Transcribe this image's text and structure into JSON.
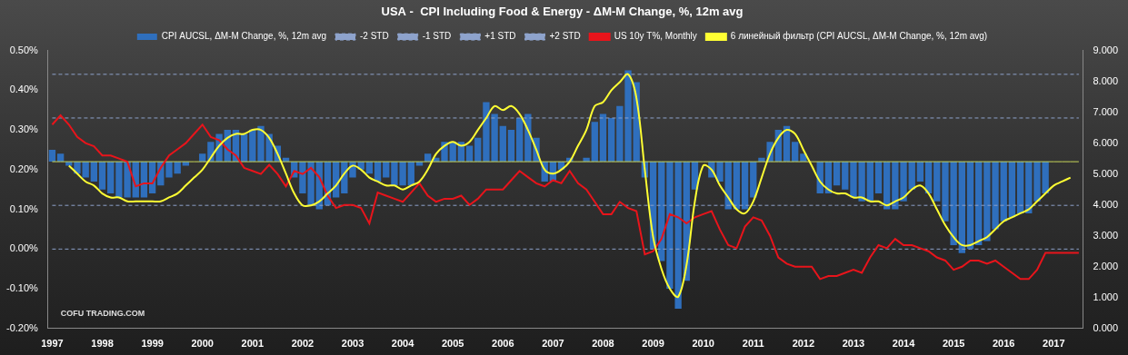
{
  "chart_data": {
    "type": "bar",
    "title": "USA -  CPI Including Food & Energy - ΔM-M Change, %, 12m avg",
    "annotation": "COFU TRADING.COM",
    "categories": [
      "1997",
      null,
      null,
      null,
      null,
      null,
      "1998",
      null,
      null,
      null,
      null,
      null,
      "1999",
      null,
      null,
      null,
      null,
      null,
      "2000",
      null,
      null,
      null,
      null,
      null,
      "2001",
      null,
      null,
      null,
      null,
      null,
      "2002",
      null,
      null,
      null,
      null,
      null,
      "2003",
      null,
      null,
      null,
      null,
      null,
      "2004",
      null,
      null,
      null,
      null,
      null,
      "2005",
      null,
      null,
      null,
      null,
      null,
      "2006",
      null,
      null,
      null,
      null,
      null,
      "2007",
      null,
      null,
      null,
      null,
      null,
      "2008",
      null,
      null,
      null,
      null,
      null,
      "2009",
      null,
      null,
      null,
      null,
      null,
      "2010",
      null,
      null,
      null,
      null,
      null,
      "2011",
      null,
      null,
      null,
      null,
      null,
      "2012",
      null,
      null,
      null,
      null,
      null,
      "2013",
      null,
      null,
      null,
      null,
      null,
      "2014",
      null,
      null,
      null,
      null,
      null,
      "2015",
      null,
      null,
      null,
      null,
      null,
      "2016",
      null,
      null,
      null,
      null,
      null,
      "2017",
      null,
      null,
      null
    ],
    "series": [
      {
        "name": "CPI AUCSL, ΔM-M Change, %, 12m avg",
        "type": "bar",
        "color": "#2f6fbd",
        "base": 0.22,
        "values": [
          0.25,
          0.24,
          0.21,
          0.19,
          0.18,
          0.17,
          0.15,
          0.14,
          0.13,
          0.13,
          0.13,
          0.13,
          0.14,
          0.16,
          0.18,
          0.19,
          0.21,
          0.22,
          0.24,
          0.27,
          0.29,
          0.3,
          0.3,
          0.29,
          0.3,
          0.31,
          0.29,
          0.26,
          0.23,
          0.18,
          0.14,
          0.11,
          0.1,
          0.11,
          0.13,
          0.14,
          0.18,
          0.2,
          0.19,
          0.17,
          0.18,
          0.16,
          0.16,
          0.16,
          0.21,
          0.24,
          0.23,
          0.27,
          0.27,
          0.27,
          0.26,
          0.28,
          0.37,
          0.34,
          0.31,
          0.3,
          0.33,
          0.34,
          0.28,
          0.17,
          0.17,
          0.2,
          0.23,
          0.22,
          0.23,
          0.32,
          0.34,
          0.33,
          0.36,
          0.45,
          0.42,
          0.18,
          0.0,
          -0.03,
          -0.1,
          -0.15,
          -0.08,
          0.15,
          0.22,
          0.18,
          0.17,
          0.1,
          0.1,
          0.1,
          0.13,
          0.23,
          0.27,
          0.3,
          0.31,
          0.27,
          0.24,
          0.22,
          0.14,
          0.14,
          0.16,
          0.15,
          0.13,
          0.12,
          0.12,
          0.14,
          0.1,
          0.1,
          0.12,
          0.15,
          0.17,
          0.14,
          0.12,
          0.07,
          0.01,
          -0.01,
          0.0,
          0.01,
          0.02,
          0.05,
          0.07,
          0.08,
          0.09,
          0.09,
          0.12,
          0.14,
          null,
          null,
          null,
          null
        ]
      },
      {
        "name": "-2 STD",
        "type": "hline",
        "color": "#8ea3cc",
        "line_style": "dashed",
        "value": 0.0
      },
      {
        "name": "-1 STD",
        "type": "hline",
        "color": "#8ea3cc",
        "line_style": "dashed",
        "value": 0.11
      },
      {
        "name": "+1 STD",
        "type": "hline",
        "color": "#8ea3cc",
        "line_style": "dashed",
        "value": 0.33
      },
      {
        "name": "+2 STD",
        "type": "hline",
        "color": "#8ea3cc",
        "line_style": "dashed",
        "value": 0.44
      },
      {
        "name": "US 10y T%, Monthly",
        "type": "line",
        "axis": "y2",
        "color": "#e8141b",
        "line_style": "solid",
        "values": [
          6.6,
          6.9,
          6.6,
          6.2,
          6.0,
          5.9,
          5.6,
          5.6,
          5.5,
          5.4,
          4.6,
          4.7,
          4.7,
          5.2,
          5.6,
          5.8,
          6.0,
          6.3,
          6.6,
          6.2,
          6.1,
          5.8,
          5.6,
          5.2,
          5.1,
          5.0,
          5.3,
          5.0,
          4.6,
          5.1,
          5.0,
          5.2,
          4.9,
          4.3,
          3.9,
          4.0,
          4.0,
          3.9,
          3.4,
          4.4,
          4.3,
          4.2,
          4.1,
          4.4,
          4.7,
          4.3,
          4.1,
          4.2,
          4.2,
          4.3,
          4.0,
          4.2,
          4.5,
          4.5,
          4.5,
          4.8,
          5.1,
          4.9,
          4.7,
          4.6,
          4.8,
          4.7,
          5.1,
          4.7,
          4.5,
          4.1,
          3.7,
          3.7,
          4.1,
          3.9,
          3.8,
          2.4,
          2.5,
          2.9,
          3.7,
          3.6,
          3.4,
          3.6,
          3.7,
          3.8,
          3.2,
          2.7,
          2.6,
          3.3,
          3.6,
          3.5,
          3.0,
          2.3,
          2.1,
          2.0,
          2.0,
          2.0,
          1.6,
          1.7,
          1.7,
          1.8,
          1.9,
          1.8,
          2.3,
          2.7,
          2.6,
          2.9,
          2.7,
          2.7,
          2.6,
          2.5,
          2.3,
          2.2,
          1.9,
          2.0,
          2.2,
          2.2,
          2.1,
          2.2,
          2.0,
          1.8,
          1.6,
          1.6,
          1.9,
          2.45,
          2.45,
          2.45,
          2.45,
          2.45
        ]
      },
      {
        "name": "6 линейный фильтр (CPI AUCSL, ΔM-M Change, %, 12m avg)",
        "type": "line",
        "color": "#ffff33",
        "line_style": "solid",
        "values": [
          null,
          null,
          0.21,
          0.19,
          0.17,
          0.16,
          0.14,
          0.13,
          0.13,
          0.12,
          0.12,
          0.12,
          0.12,
          0.12,
          0.13,
          0.14,
          0.16,
          0.18,
          0.2,
          0.23,
          0.26,
          0.28,
          0.29,
          0.29,
          0.3,
          0.3,
          0.28,
          0.24,
          0.19,
          0.14,
          0.11,
          0.11,
          0.12,
          0.14,
          0.16,
          0.19,
          0.21,
          0.2,
          0.18,
          0.17,
          0.16,
          0.16,
          0.15,
          0.16,
          0.17,
          0.2,
          0.24,
          0.26,
          0.27,
          0.26,
          0.27,
          0.3,
          0.33,
          0.36,
          0.35,
          0.36,
          0.34,
          0.3,
          0.25,
          0.2,
          0.19,
          0.2,
          0.22,
          0.26,
          0.3,
          0.36,
          0.37,
          0.4,
          0.42,
          0.44,
          0.38,
          0.2,
          0.03,
          -0.05,
          -0.1,
          -0.12,
          -0.04,
          0.12,
          0.21,
          0.2,
          0.16,
          0.13,
          0.1,
          0.09,
          0.12,
          0.18,
          0.24,
          0.28,
          0.3,
          0.29,
          0.25,
          0.21,
          0.17,
          0.15,
          0.14,
          0.14,
          0.13,
          0.13,
          0.12,
          0.12,
          0.11,
          0.12,
          0.13,
          0.15,
          0.16,
          0.14,
          0.1,
          0.06,
          0.03,
          0.01,
          0.01,
          0.02,
          0.03,
          0.05,
          0.07,
          0.08,
          0.09,
          0.1,
          0.12,
          0.14,
          0.16,
          0.17,
          0.18,
          null
        ]
      }
    ],
    "ylim": [
      -0.2,
      0.5
    ],
    "yticks": [
      {
        "value": -0.2,
        "label": "-0.20%"
      },
      {
        "value": -0.1,
        "label": "-0.10%"
      },
      {
        "value": 0,
        "label": "0.00%"
      },
      {
        "value": 0.1,
        "label": "0.10%"
      },
      {
        "value": 0.2,
        "label": "0.20%"
      },
      {
        "value": 0.3,
        "label": "0.30%"
      },
      {
        "value": 0.4,
        "label": "0.40%"
      },
      {
        "value": 0.5,
        "label": "0.50%"
      }
    ],
    "y2lim": [
      0,
      9
    ],
    "y2ticks": [
      {
        "value": 0,
        "label": "0.000"
      },
      {
        "value": 1,
        "label": "1.000"
      },
      {
        "value": 2,
        "label": "2.000"
      },
      {
        "value": 3,
        "label": "3.000"
      },
      {
        "value": 4,
        "label": "4.000"
      },
      {
        "value": 5,
        "label": "5.000"
      },
      {
        "value": 6,
        "label": "6.000"
      },
      {
        "value": 7,
        "label": "7.000"
      },
      {
        "value": 8,
        "label": "8.000"
      },
      {
        "value": 9,
        "label": "9.000"
      }
    ],
    "grid": false,
    "legend": "top"
  }
}
